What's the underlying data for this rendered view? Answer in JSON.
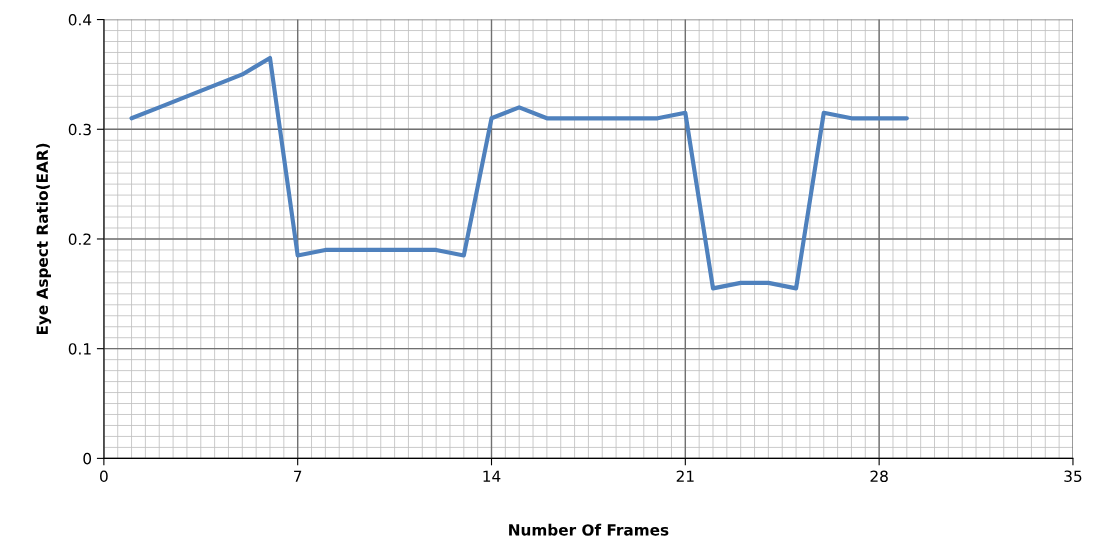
{
  "chart_data": {
    "type": "line",
    "xlabel": "Number Of Frames",
    "ylabel": "Eye Aspect Ratio(EAR)",
    "x": [
      1,
      2,
      3,
      4,
      5,
      6,
      7,
      8,
      9,
      10,
      11,
      12,
      13,
      14,
      15,
      16,
      17,
      18,
      19,
      20,
      21,
      22,
      23,
      24,
      25,
      26,
      27,
      28,
      29
    ],
    "series": [
      {
        "color": "#4f81bd",
        "values": [
          0.31,
          0.32,
          0.33,
          0.34,
          0.35,
          0.365,
          0.185,
          0.19,
          0.19,
          0.19,
          0.19,
          0.19,
          0.185,
          0.31,
          0.32,
          0.31,
          0.31,
          0.31,
          0.31,
          0.31,
          0.315,
          0.155,
          0.16,
          0.16,
          0.155,
          0.315,
          0.31,
          0.31,
          0.31
        ]
      }
    ],
    "xlim": [
      0,
      35
    ],
    "xticks": [
      0,
      7,
      14,
      21,
      28,
      35
    ],
    "ylim": [
      0,
      0.4
    ],
    "yticks": [
      {
        "value": 0,
        "label": "0"
      },
      0.1,
      0.2,
      0.3,
      0.4
    ],
    "grid": true,
    "marker": "none",
    "line_style": "solid",
    "legend": false
  }
}
